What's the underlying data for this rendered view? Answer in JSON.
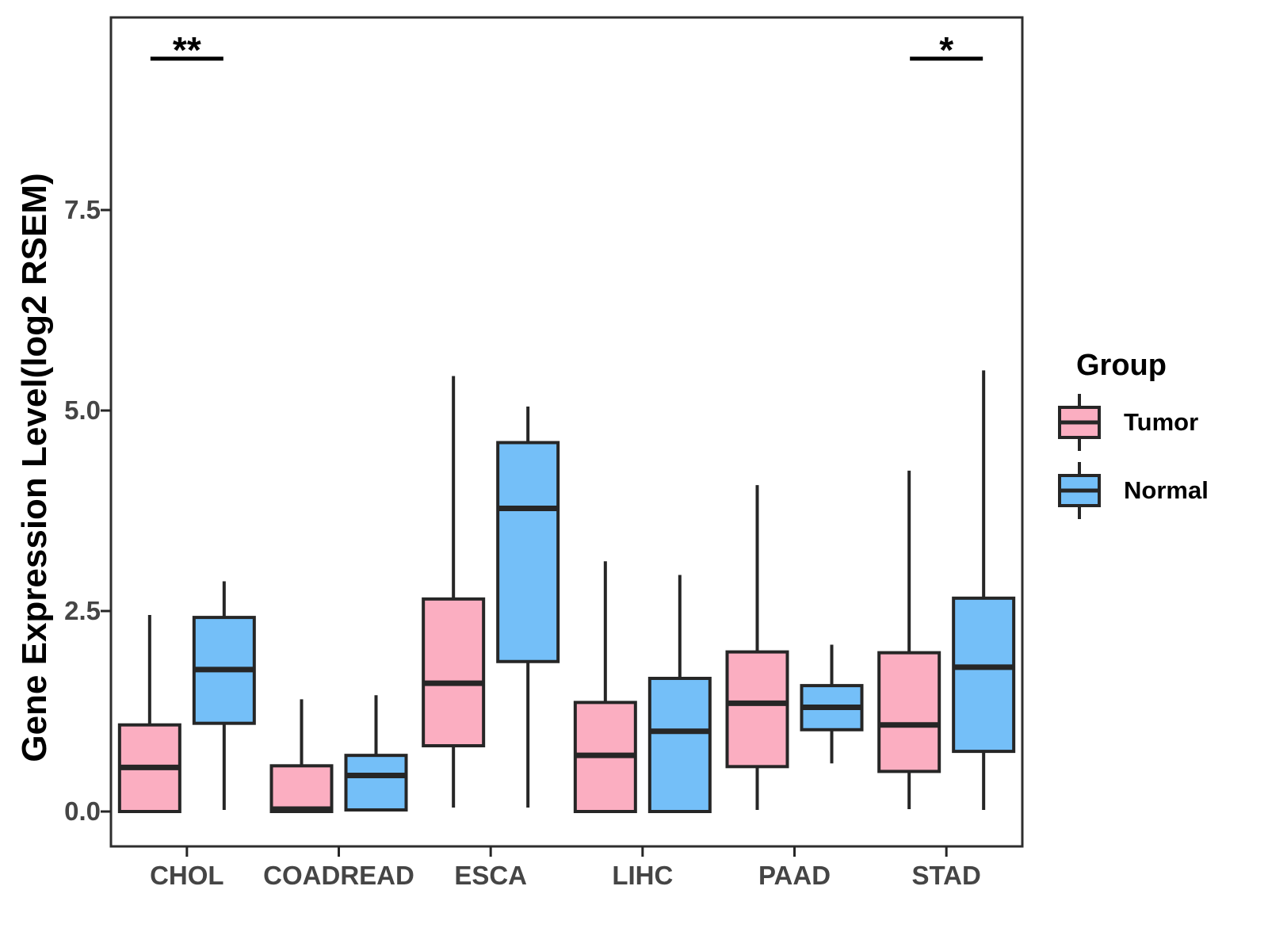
{
  "chart_data": {
    "type": "boxplot",
    "title": "",
    "xlabel": "",
    "ylabel": "Gene Expression Level(log2 RSEM)",
    "ylim": [
      -0.45,
      9.9
    ],
    "grid": false,
    "yticks": [
      {
        "label": "0.0",
        "value": 0.0
      },
      {
        "label": "2.5",
        "value": 2.5
      },
      {
        "label": "5.0",
        "value": 5.0
      },
      {
        "label": "7.5",
        "value": 7.5
      }
    ],
    "categories": [
      "CHOL",
      "COADREAD",
      "ESCA",
      "LIHC",
      "PAAD",
      "STAD"
    ],
    "groups": [
      "Tumor",
      "Normal"
    ],
    "colors": {
      "tumor_fill": "#FBAEC1",
      "normal_fill": "#74BFF8",
      "line": "#262626",
      "tick_text": "#454545"
    },
    "series": [
      {
        "name": "Tumor",
        "color": "#FBAEC1",
        "boxes": [
          {
            "category": "CHOL",
            "min": 0.0,
            "q1": 0.0,
            "median": 0.55,
            "q3": 1.08,
            "max": 2.45
          },
          {
            "category": "COADREAD",
            "min": 0.0,
            "q1": 0.0,
            "median": 0.03,
            "q3": 0.57,
            "max": 1.4
          },
          {
            "category": "ESCA",
            "min": 0.05,
            "q1": 0.82,
            "median": 1.6,
            "q3": 2.65,
            "max": 5.43
          },
          {
            "category": "LIHC",
            "min": 0.0,
            "q1": 0.0,
            "median": 0.7,
            "q3": 1.36,
            "max": 3.12
          },
          {
            "category": "PAAD",
            "min": 0.02,
            "q1": 0.56,
            "median": 1.35,
            "q3": 1.99,
            "max": 4.07
          },
          {
            "category": "STAD",
            "min": 0.03,
            "q1": 0.5,
            "median": 1.08,
            "q3": 1.98,
            "max": 4.25
          }
        ]
      },
      {
        "name": "Normal",
        "color": "#74BFF8",
        "boxes": [
          {
            "category": "CHOL",
            "min": 0.02,
            "q1": 1.1,
            "median": 1.77,
            "q3": 2.42,
            "max": 2.87
          },
          {
            "category": "COADREAD",
            "min": 0.02,
            "q1": 0.02,
            "median": 0.45,
            "q3": 0.7,
            "max": 1.45
          },
          {
            "category": "ESCA",
            "min": 0.05,
            "q1": 1.87,
            "median": 3.78,
            "q3": 4.6,
            "max": 5.05
          },
          {
            "category": "LIHC",
            "min": 0.0,
            "q1": 0.0,
            "median": 1.0,
            "q3": 1.66,
            "max": 2.95
          },
          {
            "category": "PAAD",
            "min": 0.6,
            "q1": 1.02,
            "median": 1.3,
            "q3": 1.57,
            "max": 2.08
          },
          {
            "category": "STAD",
            "min": 0.02,
            "q1": 0.75,
            "median": 1.8,
            "q3": 2.66,
            "max": 5.5
          }
        ]
      }
    ],
    "significance": [
      {
        "category": "CHOL",
        "label": "**"
      },
      {
        "category": "STAD",
        "label": "*"
      }
    ],
    "legend": {
      "title": "Group",
      "position": "right",
      "entries": [
        {
          "label": "Tumor",
          "color": "#FBAEC1"
        },
        {
          "label": "Normal",
          "color": "#74BFF8"
        }
      ]
    }
  }
}
